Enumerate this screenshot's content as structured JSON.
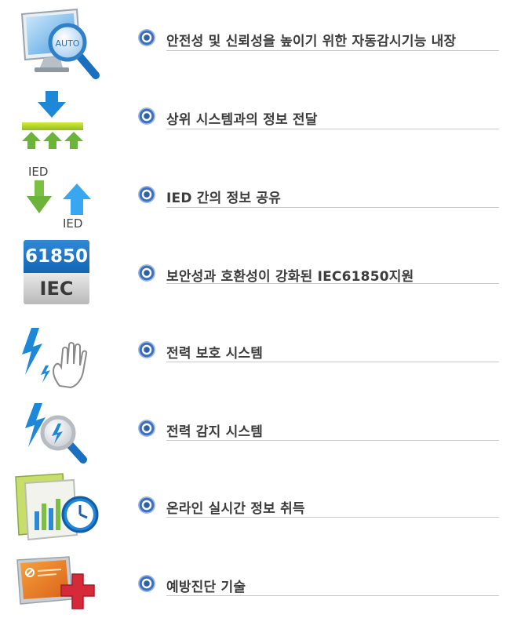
{
  "features": [
    {
      "icon": "monitor-auto-magnifier-icon",
      "label": "안전성 및 신뢰성을 높이기 위한 자동감시기능 내장"
    },
    {
      "icon": "data-transfer-upward-icon",
      "label": " 상위 시스템과의 정보 전달"
    },
    {
      "icon": "ied-exchange-icon",
      "label": "IED 간의 정보 공유",
      "top_tag": "IED",
      "bottom_tag": "IED"
    },
    {
      "icon": "iec-61850-badge-icon",
      "label": "보안성과 호환성이 강화된 IEC61850지원",
      "badge_number": "61850",
      "badge_text": "IEC"
    },
    {
      "icon": "lightning-hand-icon",
      "label": "전력 보호 시스템"
    },
    {
      "icon": "lightning-magnifier-icon",
      "label": "전력 감지 시스템"
    },
    {
      "icon": "chart-clock-icon",
      "label": "온라인 실시간 정보 취득"
    },
    {
      "icon": "screen-medical-cross-icon",
      "label": "예방진단 기술"
    }
  ],
  "colors": {
    "bullet": "#3a6fbf",
    "text": "#3c3c3c",
    "rule": "#c9c9c9",
    "blue": "#1e88d8",
    "green": "#7cc043",
    "red": "#d62a3a"
  }
}
